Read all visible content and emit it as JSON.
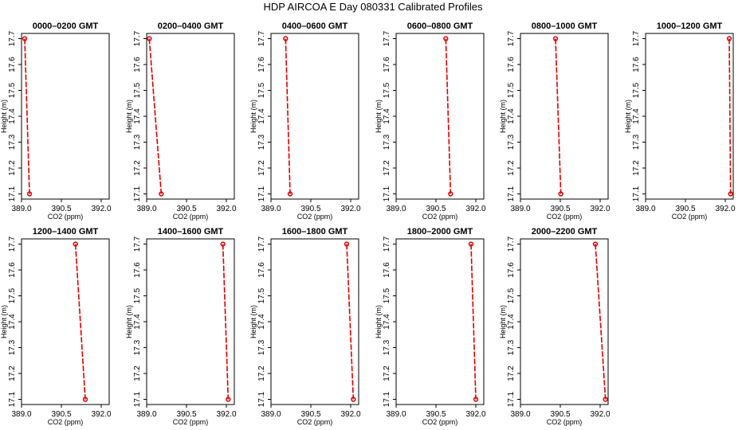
{
  "title": "HDP  AIRCOA E  Day 080331  Calibrated Profiles",
  "colors": {
    "series": "#e00000",
    "axis": "#000000",
    "background": "#ffffff"
  },
  "chart_data": [
    {
      "type": "line",
      "title": "0000–0200 GMT",
      "xlabel": "CO2 (ppm)",
      "ylabel": "Height (m)",
      "xlim": [
        389.0,
        392.3
      ],
      "ylim": [
        17.08,
        17.72
      ],
      "xticks": [
        "389.0",
        "390.5",
        "392.0"
      ],
      "yticks": [
        "17.1",
        "17.2",
        "17.3",
        "17.4",
        "17.5",
        "17.6",
        "17.7"
      ],
      "points": [
        {
          "x": 389.12,
          "y": 17.7
        },
        {
          "x": 389.3,
          "y": 17.1
        }
      ]
    },
    {
      "type": "line",
      "title": "0200–0400 GMT",
      "xlabel": "CO2 (ppm)",
      "ylabel": "Height (m)",
      "xlim": [
        389.0,
        392.3
      ],
      "ylim": [
        17.08,
        17.72
      ],
      "xticks": [
        "389.0",
        "390.5",
        "392.0"
      ],
      "yticks": [
        "17.1",
        "17.2",
        "17.3",
        "17.4",
        "17.5",
        "17.6",
        "17.7"
      ],
      "points": [
        {
          "x": 389.1,
          "y": 17.7
        },
        {
          "x": 389.55,
          "y": 17.1
        }
      ]
    },
    {
      "type": "line",
      "title": "0400–0600 GMT",
      "xlabel": "CO2 (ppm)",
      "ylabel": "Height (m)",
      "xlim": [
        389.0,
        392.3
      ],
      "ylim": [
        17.08,
        17.72
      ],
      "xticks": [
        "389.0",
        "390.5",
        "392.0"
      ],
      "yticks": [
        "17.1",
        "17.2",
        "17.3",
        "17.4",
        "17.5",
        "17.6",
        "17.7"
      ],
      "points": [
        {
          "x": 389.55,
          "y": 17.7
        },
        {
          "x": 389.72,
          "y": 17.1
        }
      ]
    },
    {
      "type": "line",
      "title": "0600–0800 GMT",
      "xlabel": "CO2 (ppm)",
      "ylabel": "Height (m)",
      "xlim": [
        389.0,
        392.3
      ],
      "ylim": [
        17.08,
        17.72
      ],
      "xticks": [
        "389.0",
        "390.5",
        "392.0"
      ],
      "yticks": [
        "17.1",
        "17.2",
        "17.3",
        "17.4",
        "17.5",
        "17.6",
        "17.7"
      ],
      "points": [
        {
          "x": 390.87,
          "y": 17.7
        },
        {
          "x": 391.05,
          "y": 17.1
        }
      ]
    },
    {
      "type": "line",
      "title": "0800–1000 GMT",
      "xlabel": "CO2 (ppm)",
      "ylabel": "Height (m)",
      "xlim": [
        389.0,
        392.3
      ],
      "ylim": [
        17.08,
        17.72
      ],
      "xticks": [
        "389.0",
        "390.5",
        "392.0"
      ],
      "yticks": [
        "17.1",
        "17.2",
        "17.3",
        "17.4",
        "17.5",
        "17.6",
        "17.7"
      ],
      "points": [
        {
          "x": 390.32,
          "y": 17.7
        },
        {
          "x": 390.52,
          "y": 17.1
        }
      ]
    },
    {
      "type": "line",
      "title": "1000–1200 GMT",
      "xlabel": "CO2 (ppm)",
      "ylabel": "Height (m)",
      "xlim": [
        389.0,
        392.3
      ],
      "ylim": [
        17.08,
        17.72
      ],
      "xticks": [
        "389.0",
        "390.5",
        "392.0"
      ],
      "yticks": [
        "17.1",
        "17.2",
        "17.3",
        "17.4",
        "17.5",
        "17.6",
        "17.7"
      ],
      "points": [
        {
          "x": 392.15,
          "y": 17.7
        },
        {
          "x": 392.2,
          "y": 17.1
        }
      ]
    },
    {
      "type": "line",
      "title": "1200–1400 GMT",
      "xlabel": "CO2 (ppm)",
      "ylabel": "Height (m)",
      "xlim": [
        389.0,
        392.3
      ],
      "ylim": [
        17.08,
        17.72
      ],
      "xticks": [
        "389.0",
        "390.5",
        "392.0"
      ],
      "yticks": [
        "17.1",
        "17.2",
        "17.3",
        "17.4",
        "17.5",
        "17.6",
        "17.7"
      ],
      "points": [
        {
          "x": 391.03,
          "y": 17.7
        },
        {
          "x": 391.4,
          "y": 17.1
        }
      ]
    },
    {
      "type": "line",
      "title": "1400–1600 GMT",
      "xlabel": "CO2 (ppm)",
      "ylabel": "Height (m)",
      "xlim": [
        389.0,
        392.3
      ],
      "ylim": [
        17.08,
        17.72
      ],
      "xticks": [
        "389.0",
        "390.5",
        "392.0"
      ],
      "yticks": [
        "17.1",
        "17.2",
        "17.3",
        "17.4",
        "17.5",
        "17.6",
        "17.7"
      ],
      "points": [
        {
          "x": 391.87,
          "y": 17.7
        },
        {
          "x": 392.07,
          "y": 17.1
        }
      ]
    },
    {
      "type": "line",
      "title": "1600–1800 GMT",
      "xlabel": "CO2 (ppm)",
      "ylabel": "Height (m)",
      "xlim": [
        389.0,
        392.3
      ],
      "ylim": [
        17.08,
        17.72
      ],
      "xticks": [
        "389.0",
        "390.5",
        "392.0"
      ],
      "yticks": [
        "17.1",
        "17.2",
        "17.3",
        "17.4",
        "17.5",
        "17.6",
        "17.7"
      ],
      "points": [
        {
          "x": 391.85,
          "y": 17.7
        },
        {
          "x": 392.1,
          "y": 17.1
        }
      ]
    },
    {
      "type": "line",
      "title": "1800–2000 GMT",
      "xlabel": "CO2 (ppm)",
      "ylabel": "Height (m)",
      "xlim": [
        389.0,
        392.3
      ],
      "ylim": [
        17.08,
        17.72
      ],
      "xticks": [
        "389.0",
        "390.5",
        "392.0"
      ],
      "yticks": [
        "17.1",
        "17.2",
        "17.3",
        "17.4",
        "17.5",
        "17.6",
        "17.7"
      ],
      "points": [
        {
          "x": 391.82,
          "y": 17.7
        },
        {
          "x": 392.0,
          "y": 17.1
        }
      ]
    },
    {
      "type": "line",
      "title": "2000–2200 GMT",
      "xlabel": "CO2 (ppm)",
      "ylabel": "Height (m)",
      "xlim": [
        389.0,
        392.3
      ],
      "ylim": [
        17.08,
        17.72
      ],
      "xticks": [
        "389.0",
        "390.5",
        "392.0"
      ],
      "yticks": [
        "17.1",
        "17.2",
        "17.3",
        "17.4",
        "17.5",
        "17.6",
        "17.7"
      ],
      "points": [
        {
          "x": 391.82,
          "y": 17.7
        },
        {
          "x": 392.2,
          "y": 17.1
        }
      ]
    }
  ]
}
